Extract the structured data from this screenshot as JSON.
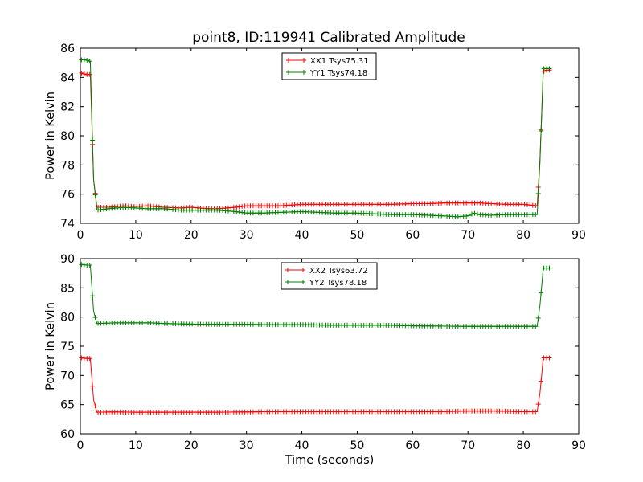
{
  "figure": {
    "title": "point8, ID:119941 Calibrated Amplitude"
  },
  "chart_data": [
    {
      "type": "line",
      "title": "point8, ID:119941 Calibrated Amplitude",
      "xlabel": "",
      "ylabel": "Power in Kelvin",
      "xlim": [
        0,
        90
      ],
      "ylim": [
        74,
        86
      ],
      "xticks": [
        0,
        10,
        20,
        30,
        40,
        50,
        60,
        70,
        80,
        90
      ],
      "yticks": [
        74,
        76,
        78,
        80,
        82,
        84,
        86
      ],
      "legend_position": "top-center",
      "grid": false,
      "series": [
        {
          "name": "XX1 Tsys75.31",
          "color": "#ff0000",
          "marker": "+",
          "points": [
            [
              0.2,
              84.3
            ],
            [
              1.0,
              84.2
            ],
            [
              1.8,
              84.2
            ],
            [
              2.4,
              77.0
            ],
            [
              3.0,
              75.1
            ],
            [
              5,
              75.1
            ],
            [
              8,
              75.2
            ],
            [
              10,
              75.15
            ],
            [
              12,
              75.2
            ],
            [
              15,
              75.1
            ],
            [
              18,
              75.05
            ],
            [
              20,
              75.1
            ],
            [
              23,
              75.0
            ],
            [
              25,
              75.0
            ],
            [
              28,
              75.1
            ],
            [
              30,
              75.2
            ],
            [
              33,
              75.2
            ],
            [
              36,
              75.2
            ],
            [
              40,
              75.3
            ],
            [
              43,
              75.3
            ],
            [
              46,
              75.3
            ],
            [
              50,
              75.3
            ],
            [
              53,
              75.3
            ],
            [
              56,
              75.3
            ],
            [
              60,
              75.35
            ],
            [
              63,
              75.35
            ],
            [
              66,
              75.4
            ],
            [
              68,
              75.4
            ],
            [
              70,
              75.4
            ],
            [
              72,
              75.4
            ],
            [
              74,
              75.35
            ],
            [
              77,
              75.3
            ],
            [
              80,
              75.3
            ],
            [
              82.5,
              75.2
            ],
            [
              83.0,
              78.4
            ],
            [
              83.6,
              84.4
            ],
            [
              84.2,
              84.5
            ],
            [
              85.0,
              84.5
            ]
          ]
        },
        {
          "name": "YY1 Tsys74.18",
          "color": "#008000",
          "marker": "+",
          "points": [
            [
              0.2,
              85.2
            ],
            [
              1.0,
              85.2
            ],
            [
              1.8,
              85.1
            ],
            [
              2.4,
              77.0
            ],
            [
              3.0,
              74.9
            ],
            [
              5,
              75.0
            ],
            [
              8,
              75.1
            ],
            [
              10,
              75.05
            ],
            [
              12,
              75.0
            ],
            [
              15,
              75.0
            ],
            [
              18,
              74.9
            ],
            [
              20,
              74.9
            ],
            [
              23,
              74.9
            ],
            [
              25,
              74.9
            ],
            [
              28,
              74.8
            ],
            [
              30,
              74.7
            ],
            [
              33,
              74.7
            ],
            [
              36,
              74.75
            ],
            [
              40,
              74.8
            ],
            [
              43,
              74.75
            ],
            [
              46,
              74.7
            ],
            [
              50,
              74.7
            ],
            [
              53,
              74.65
            ],
            [
              56,
              74.6
            ],
            [
              60,
              74.6
            ],
            [
              63,
              74.55
            ],
            [
              66,
              74.5
            ],
            [
              68,
              74.45
            ],
            [
              70,
              74.5
            ],
            [
              71,
              74.7
            ],
            [
              72,
              74.6
            ],
            [
              74,
              74.55
            ],
            [
              77,
              74.6
            ],
            [
              80,
              74.6
            ],
            [
              82.5,
              74.6
            ],
            [
              83.0,
              78.2
            ],
            [
              83.6,
              84.6
            ],
            [
              84.2,
              84.6
            ],
            [
              85.0,
              84.6
            ]
          ]
        }
      ]
    },
    {
      "type": "line",
      "title": "",
      "xlabel": "Time (seconds)",
      "ylabel": "Power in Kelvin",
      "xlim": [
        0,
        90
      ],
      "ylim": [
        60,
        90
      ],
      "xticks": [
        0,
        10,
        20,
        30,
        40,
        50,
        60,
        70,
        80,
        90
      ],
      "yticks": [
        60,
        65,
        70,
        75,
        80,
        85,
        90
      ],
      "legend_position": "top-center",
      "grid": false,
      "series": [
        {
          "name": "XX2 Tsys63.72",
          "color": "#ff0000",
          "marker": "+",
          "points": [
            [
              0.2,
              73.0
            ],
            [
              1.0,
              72.9
            ],
            [
              1.8,
              72.9
            ],
            [
              2.4,
              65.8
            ],
            [
              3.0,
              63.7
            ],
            [
              6,
              63.75
            ],
            [
              10,
              63.7
            ],
            [
              15,
              63.7
            ],
            [
              20,
              63.7
            ],
            [
              25,
              63.7
            ],
            [
              30,
              63.75
            ],
            [
              35,
              63.8
            ],
            [
              40,
              63.8
            ],
            [
              45,
              63.8
            ],
            [
              50,
              63.8
            ],
            [
              55,
              63.8
            ],
            [
              60,
              63.8
            ],
            [
              65,
              63.8
            ],
            [
              70,
              63.9
            ],
            [
              75,
              63.9
            ],
            [
              80,
              63.8
            ],
            [
              82.5,
              63.8
            ],
            [
              83.0,
              67.0
            ],
            [
              83.6,
              73.0
            ],
            [
              84.2,
              73.0
            ],
            [
              85.0,
              73.0
            ]
          ]
        },
        {
          "name": "YY2 Tsys78.18",
          "color": "#008000",
          "marker": "+",
          "points": [
            [
              0.2,
              89.0
            ],
            [
              1.0,
              88.9
            ],
            [
              1.8,
              88.9
            ],
            [
              2.4,
              81.0
            ],
            [
              3.0,
              78.9
            ],
            [
              6,
              79.0
            ],
            [
              10,
              79.0
            ],
            [
              13,
              79.0
            ],
            [
              15,
              78.9
            ],
            [
              20,
              78.8
            ],
            [
              25,
              78.75
            ],
            [
              30,
              78.75
            ],
            [
              35,
              78.7
            ],
            [
              40,
              78.7
            ],
            [
              45,
              78.6
            ],
            [
              50,
              78.6
            ],
            [
              55,
              78.6
            ],
            [
              60,
              78.5
            ],
            [
              65,
              78.45
            ],
            [
              70,
              78.4
            ],
            [
              75,
              78.4
            ],
            [
              80,
              78.4
            ],
            [
              82.5,
              78.4
            ],
            [
              83.0,
              82.0
            ],
            [
              83.6,
              88.4
            ],
            [
              84.2,
              88.4
            ],
            [
              85.0,
              88.4
            ]
          ]
        }
      ]
    }
  ]
}
